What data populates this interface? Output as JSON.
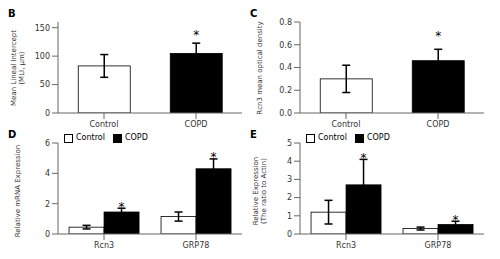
{
  "chart_data": [
    {
      "type": "bar",
      "title": "B",
      "categories": [
        "Control",
        "COPD"
      ],
      "values": [
        82.78,
        104.8
      ],
      "errors": [
        20,
        18
      ],
      "colors": [
        "white",
        "black"
      ],
      "ylabel": "Mean Lineal Intercept\n(MLI, μm)",
      "ylim": [
        0,
        160
      ],
      "yticks": [
        0,
        50,
        100,
        150
      ],
      "annotations": [
        {
          "text": "*",
          "x": "COPD",
          "y": 138
        }
      ]
    },
    {
      "type": "bar",
      "title": "C",
      "categories": [
        "Control",
        "COPD"
      ],
      "values": [
        0.3,
        0.46
      ],
      "errors": [
        0.12,
        0.1
      ],
      "colors": [
        "white",
        "black"
      ],
      "ylabel": "Rcn3 mean optical density",
      "ylim": [
        0,
        0.8
      ],
      "yticks": [
        {
          "value": 0,
          "label": "0.0"
        },
        0.2,
        0.4,
        0.6,
        0.8
      ],
      "annotations": [
        {
          "text": "*",
          "x": "COPD",
          "y": 0.68
        }
      ]
    },
    {
      "type": "bar",
      "title": "D",
      "categories": [
        "Rcn3",
        "GRP78"
      ],
      "series": [
        {
          "name": "Control",
          "color": "white",
          "values": [
            0.45,
            1.15
          ],
          "errors": [
            0.12,
            0.3
          ]
        },
        {
          "name": "COPD",
          "color": "black",
          "values": [
            1.45,
            4.3
          ],
          "errors": [
            0.25,
            0.65
          ]
        }
      ],
      "ylabel": "Relative mRNA Expression",
      "ylim": [
        0,
        6
      ],
      "yticks": [
        0,
        2,
        4,
        6
      ],
      "legend": "upper left",
      "annotations": [
        {
          "text": "*",
          "x": "Rcn3",
          "series": "COPD",
          "y": 1.8
        },
        {
          "text": "*",
          "x": "GRP78",
          "series": "COPD",
          "y": 5.1
        }
      ]
    },
    {
      "type": "bar",
      "title": "E",
      "categories": [
        "Rcn3",
        "GRP78"
      ],
      "series": [
        {
          "name": "Control",
          "color": "white",
          "values": [
            1.2,
            0.3
          ],
          "errors": [
            0.65,
            0.08
          ]
        },
        {
          "name": "COPD",
          "color": "black",
          "values": [
            2.7,
            0.52
          ],
          "errors": [
            1.4,
            0.18
          ]
        }
      ],
      "ylabel": "Relative Expression\n(The ratio to Actin)",
      "ylim": [
        0,
        5
      ],
      "yticks": [
        0,
        1,
        2,
        3,
        4,
        5
      ],
      "legend": "upper left",
      "annotations": [
        {
          "text": "*",
          "x": "Rcn3",
          "series": "COPD",
          "y": 4.2
        },
        {
          "text": "*",
          "x": "GRP78",
          "series": "COPD",
          "y": 0.76
        }
      ]
    }
  ]
}
